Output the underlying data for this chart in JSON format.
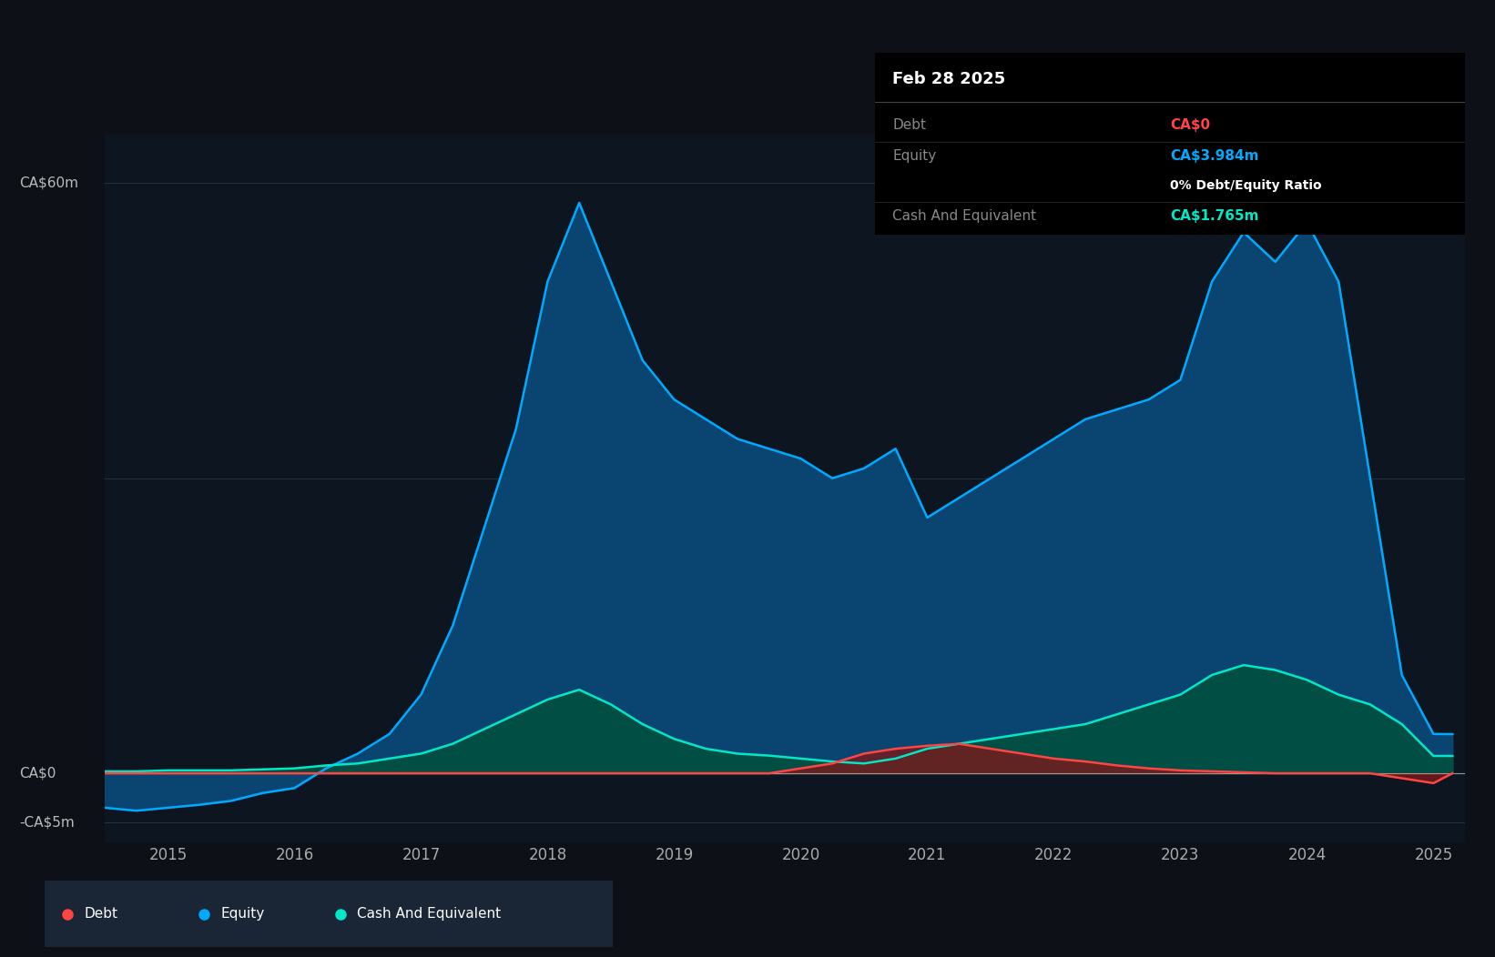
{
  "bg_color": "#0d1117",
  "plot_bg_color": "#0d1520",
  "grid_color": "#2a3a4a",
  "tooltip": {
    "date": "Feb 28 2025",
    "debt_label": "Debt",
    "debt_value": "CA$0",
    "equity_label": "Equity",
    "equity_value": "CA$3.984m",
    "ratio_text": "0% Debt/Equity Ratio",
    "cash_label": "Cash And Equivalent",
    "cash_value": "CA$1.765m"
  },
  "ylabel_top": "CA$60m",
  "ylabel_zero": "CA$0",
  "ylabel_neg": "-CA$5m",
  "ylim": [
    -7,
    65
  ],
  "xlim_start": 2014.5,
  "xlim_end": 2025.25,
  "xticks": [
    2015,
    2016,
    2017,
    2018,
    2019,
    2020,
    2021,
    2022,
    2023,
    2024,
    2025
  ],
  "equity_color": "#00aaff",
  "equity_fill": "#0a4a7a",
  "debt_color": "#ff4444",
  "debt_fill": "#7a1a1a",
  "cash_color": "#00e8c8",
  "cash_fill": "#005040",
  "legend_bg": "#1a2535",
  "time": [
    2014.5,
    2014.75,
    2015.0,
    2015.25,
    2015.5,
    2015.75,
    2016.0,
    2016.25,
    2016.5,
    2016.75,
    2017.0,
    2017.25,
    2017.5,
    2017.75,
    2018.0,
    2018.25,
    2018.5,
    2018.75,
    2019.0,
    2019.25,
    2019.5,
    2019.75,
    2020.0,
    2020.25,
    2020.5,
    2020.75,
    2021.0,
    2021.25,
    2021.5,
    2021.75,
    2022.0,
    2022.25,
    2022.5,
    2022.75,
    2023.0,
    2023.25,
    2023.5,
    2023.75,
    2024.0,
    2024.25,
    2024.5,
    2024.75,
    2025.0,
    2025.15
  ],
  "equity": [
    -3.5,
    -3.8,
    -3.5,
    -3.2,
    -2.8,
    -2.0,
    -1.5,
    0.5,
    2.0,
    4.0,
    8.0,
    15.0,
    25.0,
    35.0,
    50.0,
    58.0,
    50.0,
    42.0,
    38.0,
    36.0,
    34.0,
    33.0,
    32.0,
    30.0,
    31.0,
    33.0,
    26.0,
    28.0,
    30.0,
    32.0,
    34.0,
    36.0,
    37.0,
    38.0,
    40.0,
    50.0,
    55.0,
    52.0,
    56.0,
    50.0,
    30.0,
    10.0,
    4.0,
    3.984
  ],
  "debt": [
    0.0,
    0.0,
    0.0,
    0.0,
    0.0,
    0.0,
    0.0,
    0.0,
    0.0,
    0.0,
    0.0,
    0.0,
    0.0,
    0.0,
    0.0,
    0.0,
    0.0,
    0.0,
    0.0,
    0.0,
    0.0,
    0.0,
    0.5,
    1.0,
    2.0,
    2.5,
    2.8,
    3.0,
    2.5,
    2.0,
    1.5,
    1.2,
    0.8,
    0.5,
    0.3,
    0.2,
    0.1,
    0.0,
    0.0,
    0.0,
    0.0,
    -0.5,
    -1.0,
    0.0
  ],
  "cash": [
    0.2,
    0.2,
    0.3,
    0.3,
    0.3,
    0.4,
    0.5,
    0.8,
    1.0,
    1.5,
    2.0,
    3.0,
    4.5,
    6.0,
    7.5,
    8.5,
    7.0,
    5.0,
    3.5,
    2.5,
    2.0,
    1.8,
    1.5,
    1.2,
    1.0,
    1.5,
    2.5,
    3.0,
    3.5,
    4.0,
    4.5,
    5.0,
    6.0,
    7.0,
    8.0,
    10.0,
    11.0,
    10.5,
    9.5,
    8.0,
    7.0,
    5.0,
    1.765,
    1.765
  ]
}
